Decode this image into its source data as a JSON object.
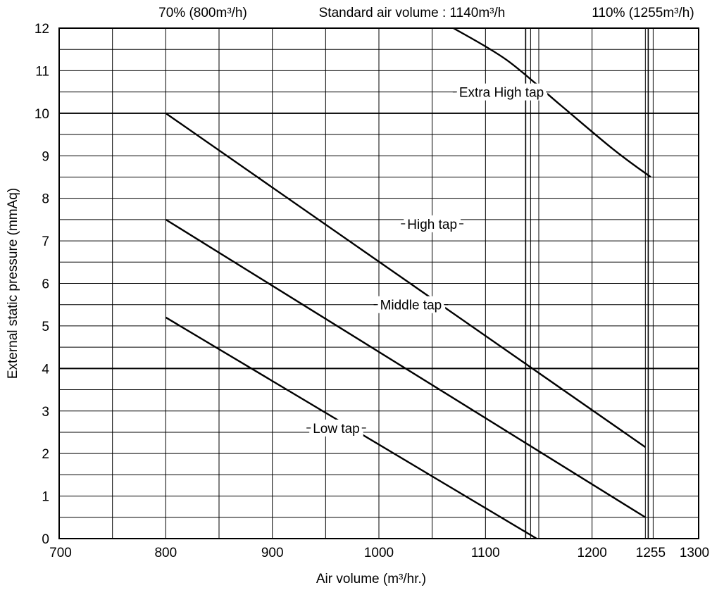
{
  "chart_data": {
    "type": "line",
    "title": "",
    "xlabel": "Air volume (m³/hr.)",
    "ylabel": "External static pressure (mmAq)",
    "xlim": [
      700,
      1300
    ],
    "ylim": [
      0,
      12
    ],
    "x_ticks": [
      700,
      800,
      900,
      1000,
      1100,
      1200,
      1255,
      1300
    ],
    "x_tick_labels": [
      "700",
      "800",
      "900",
      "1000",
      "1100",
      "1200",
      "1255",
      "1300"
    ],
    "y_ticks": [
      0,
      1,
      2,
      3,
      4,
      5,
      6,
      7,
      8,
      9,
      10,
      11,
      12
    ],
    "y_tick_labels": [
      "0",
      "1",
      "2",
      "3",
      "4",
      "5",
      "6",
      "7",
      "8",
      "9",
      "10",
      "11",
      "12"
    ],
    "grid": true,
    "grid_x_minor": [
      750,
      850,
      950,
      1050,
      1150,
      1250
    ],
    "grid_y_minor": [
      0.5,
      1.5,
      2.5,
      3.5,
      4.5,
      5.5,
      6.5,
      7.5,
      8.5,
      9.5,
      10.5,
      11.5
    ],
    "grid_y_major": [
      4,
      10
    ],
    "series": [
      {
        "name": "Extra High tap",
        "x": [
          1070,
          1120,
          1170,
          1220,
          1255
        ],
        "values": [
          12,
          11.25,
          10.2,
          9.15,
          8.5
        ]
      },
      {
        "name": "High tap",
        "x": [
          800,
          1250
        ],
        "values": [
          10,
          2.15
        ]
      },
      {
        "name": "Middle tap",
        "x": [
          800,
          1250
        ],
        "values": [
          7.5,
          0.5
        ]
      },
      {
        "name": "Low tap",
        "x": [
          800,
          1148
        ],
        "values": [
          5.2,
          0
        ]
      }
    ],
    "reference_lines": [
      {
        "x": 800,
        "label": "70% (800m³/h)"
      },
      {
        "x": 1140,
        "label": "Standard air volume : 1140m³/h"
      },
      {
        "x": 1255,
        "label": "110% (1255m³/h)"
      }
    ],
    "series_labels": [
      {
        "series": "Extra High tap",
        "x": 1115,
        "y": 10.5
      },
      {
        "series": "High tap",
        "x": 1050,
        "y": 7.4
      },
      {
        "series": "Middle tap",
        "x": 1030,
        "y": 5.5
      },
      {
        "series": "Low tap",
        "x": 960,
        "y": 2.6
      }
    ]
  }
}
